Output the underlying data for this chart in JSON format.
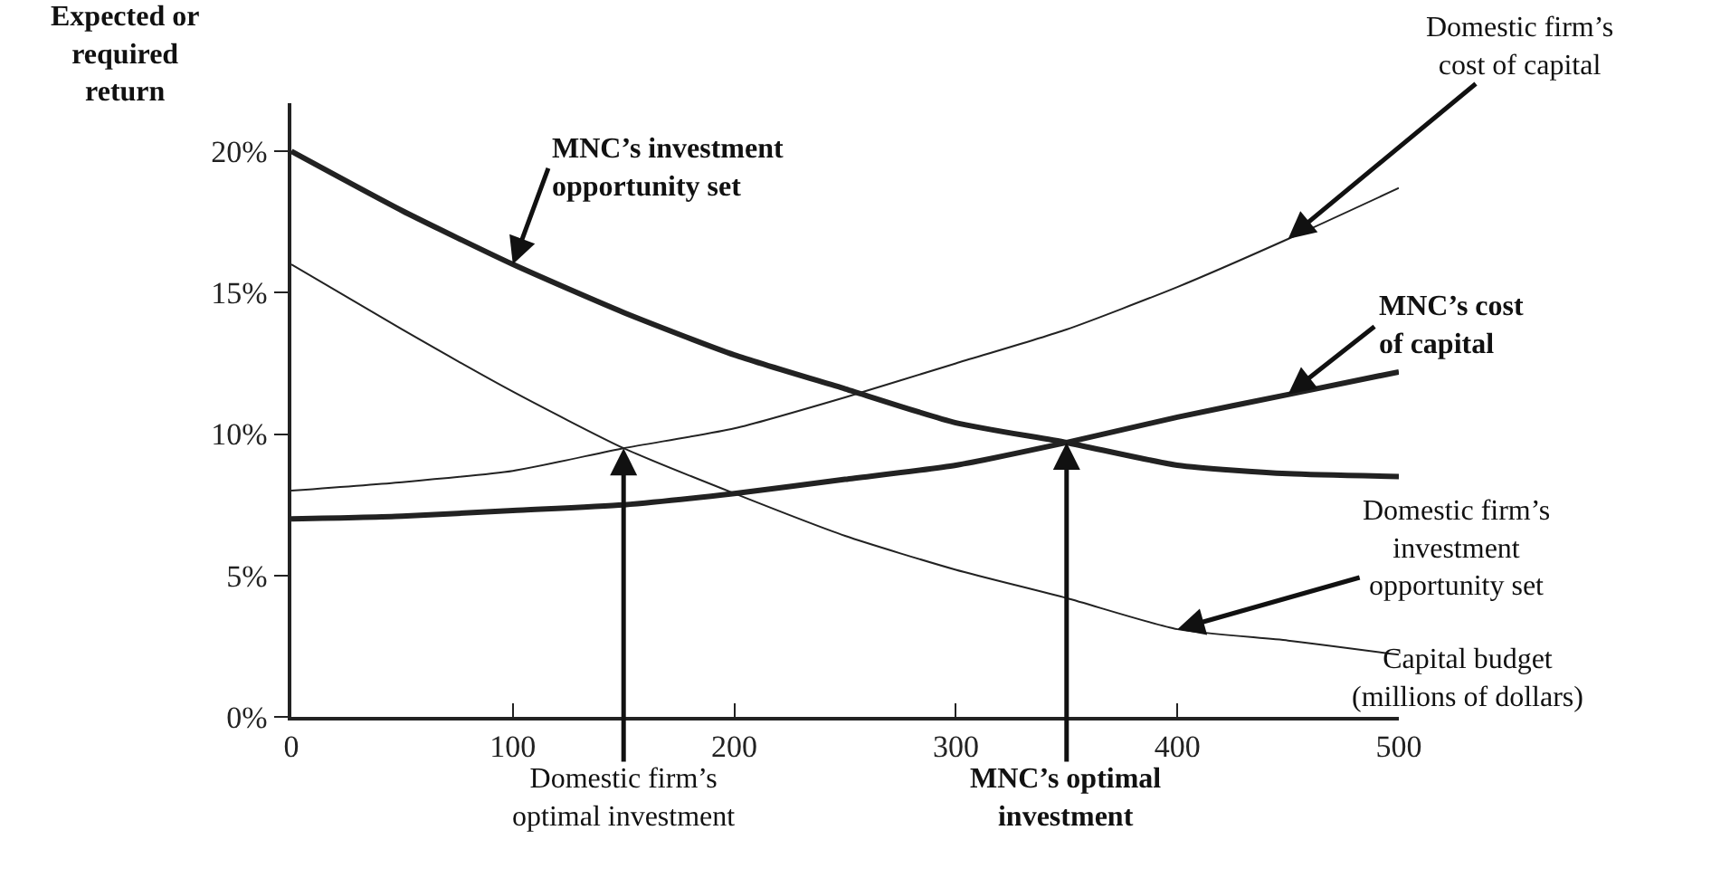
{
  "chart_data": {
    "type": "line",
    "xlabel": "Capital budget\n(millions of dollars)",
    "ylabel": "Expected or\nrequired\nreturn",
    "x": [
      0,
      50,
      100,
      150,
      200,
      250,
      300,
      350,
      400,
      450,
      500
    ],
    "series": [
      {
        "color": "#222222",
        "values": [
          20,
          17.9,
          16.0,
          14.3,
          12.8,
          11.6,
          10.4,
          9.7,
          8.9,
          8.6,
          8.5
        ]
      },
      {
        "color": "#222222",
        "values": [
          16,
          13.7,
          11.5,
          9.5,
          7.9,
          6.4,
          5.2,
          4.2,
          3.1,
          2.7,
          2.2
        ]
      },
      {
        "color": "#222222",
        "values": [
          8.0,
          8.3,
          8.7,
          9.5,
          10.2,
          11.3,
          12.5,
          13.7,
          15.2,
          16.9,
          18.7
        ]
      },
      {
        "color": "#222222",
        "values": [
          7.0,
          7.1,
          7.3,
          7.5,
          7.9,
          8.4,
          8.9,
          9.7,
          10.6,
          11.4,
          12.2
        ]
      }
    ],
    "xlim": [
      0,
      500
    ],
    "xticks": [
      0,
      100,
      200,
      300,
      400,
      500
    ],
    "ylim": [
      0,
      21.7
    ],
    "yticks": [
      {
        "value": 0,
        "label": "0%"
      },
      {
        "value": 5,
        "label": "5%"
      },
      {
        "value": 10,
        "label": "10%"
      },
      {
        "value": 15,
        "label": "15%"
      },
      {
        "value": 20,
        "label": "20%"
      }
    ],
    "annotations": [
      {
        "text": "MNC’s investment\nopportunity set",
        "x": 100,
        "y": 16.0
      },
      {
        "text": "Domestic firm’s\ncost of capital",
        "x": 450,
        "y": 16.9
      },
      {
        "text": "MNC’s cost\nof capital",
        "x": 450,
        "y": 11.4
      },
      {
        "text": "Domestic firm’s\ninvestment\nopportunity set",
        "x": 400,
        "y": 3.1
      },
      {
        "text": "Domestic firm’s\noptimal investment",
        "x": 150,
        "y": 9.5
      },
      {
        "text": "MNC’s optimal\ninvestment",
        "x": 350,
        "y": 9.7
      }
    ],
    "legend": false,
    "marker": "none",
    "line_style": "solid"
  }
}
